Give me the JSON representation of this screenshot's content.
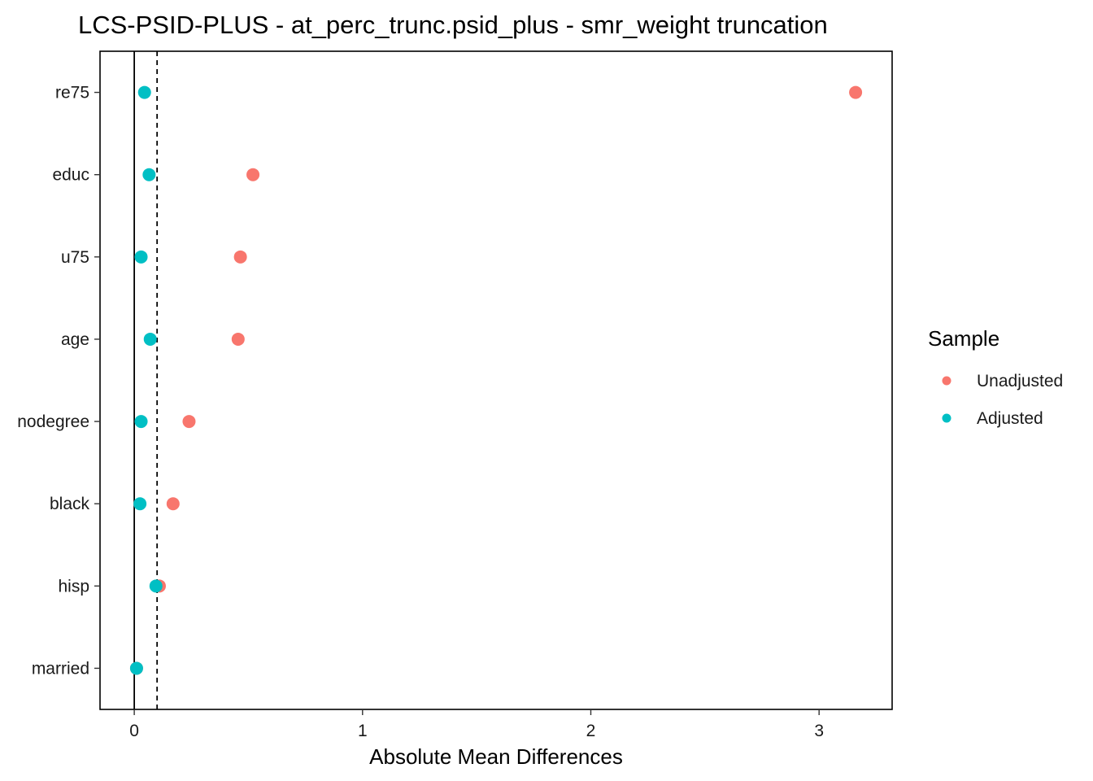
{
  "colors": {
    "unadjusted": "#F8766D",
    "adjusted": "#00BFC4",
    "axis": "#000000",
    "background": "#FFFFFF"
  },
  "chart_data": {
    "type": "scatter",
    "title": "LCS-PSID-PLUS - at_perc_trunc.psid_plus - smr_weight truncation",
    "xlabel": "Absolute Mean Differences",
    "ylabel": "",
    "xlim": [
      -0.15,
      3.32
    ],
    "x_ticks": [
      0,
      1,
      2,
      3
    ],
    "x_tick_labels": [
      "0",
      "1",
      "2",
      "3"
    ],
    "categories": [
      "re75",
      "educ",
      "u75",
      "age",
      "nodegree",
      "black",
      "hisp",
      "married"
    ],
    "reference_lines": [
      {
        "x": 0,
        "style": "solid"
      },
      {
        "x": 0.1,
        "style": "dashed"
      }
    ],
    "series": [
      {
        "name": "Unadjusted",
        "color": "#F8766D",
        "values": [
          3.16,
          0.52,
          0.465,
          0.455,
          0.24,
          0.17,
          0.11,
          0.01
        ]
      },
      {
        "name": "Adjusted",
        "color": "#00BFC4",
        "values": [
          0.045,
          0.065,
          0.03,
          0.07,
          0.03,
          0.025,
          0.095,
          0.01
        ]
      }
    ],
    "legend": {
      "title": "Sample",
      "position": "right"
    },
    "grid": false
  }
}
